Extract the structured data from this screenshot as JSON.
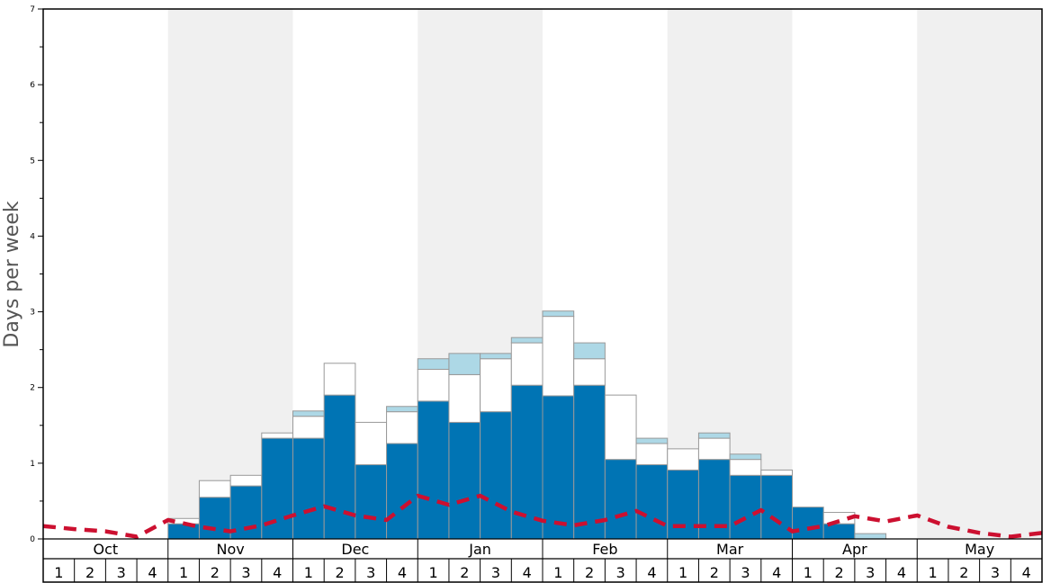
{
  "chart_data": {
    "type": "bar",
    "stacked": true,
    "ylabel": "Days per week",
    "ylim": [
      0,
      7
    ],
    "yticks": [
      "0",
      "1",
      "2",
      "3",
      "4",
      "5",
      "6",
      "7"
    ],
    "months": [
      "Oct",
      "Nov",
      "Dec",
      "Jan",
      "Feb",
      "Mar",
      "Apr",
      "May"
    ],
    "weeks": [
      "1",
      "2",
      "3",
      "4"
    ],
    "shaded_months": [
      "Nov",
      "Jan",
      "Mar",
      "May"
    ],
    "series": [
      {
        "color": "#0074b4",
        "values": [
          0,
          0,
          0,
          0,
          0.2,
          0.55,
          0.7,
          1.33,
          1.33,
          1.9,
          0.98,
          1.26,
          1.82,
          1.54,
          1.68,
          2.03,
          1.89,
          2.03,
          1.05,
          0.98,
          0.91,
          1.05,
          0.84,
          0.84,
          0.42,
          0.2,
          0,
          0,
          0,
          0,
          0,
          0
        ]
      },
      {
        "color": "#ffffff",
        "values": [
          0,
          0,
          0,
          0,
          0.07,
          0.22,
          0.14,
          0.07,
          0.29,
          0.42,
          0.56,
          0.42,
          0.42,
          0.63,
          0.7,
          0.56,
          1.05,
          0.35,
          0.85,
          0.28,
          0.28,
          0.28,
          0.21,
          0.07,
          0,
          0.15,
          0,
          0,
          0,
          0,
          0,
          0
        ]
      },
      {
        "color": "#add8e6",
        "values": [
          0,
          0,
          0,
          0,
          0,
          0,
          0,
          0,
          0.07,
          0,
          0,
          0.07,
          0.14,
          0.28,
          0.07,
          0.07,
          0.07,
          0.21,
          0,
          0.07,
          0,
          0.07,
          0.07,
          0,
          0,
          0,
          0.07,
          0,
          0,
          0,
          0,
          0
        ]
      }
    ],
    "average_line": {
      "color": "#cc1030",
      "style": "dashed",
      "values": [
        0.17,
        0.13,
        0.1,
        0.03,
        0.25,
        0.16,
        0.1,
        0.18,
        0.31,
        0.43,
        0.31,
        0.25,
        0.57,
        0.45,
        0.57,
        0.36,
        0.24,
        0.18,
        0.25,
        0.37,
        0.17,
        0.17,
        0.17,
        0.38,
        0.1,
        0.17,
        0.3,
        0.23,
        0.31,
        0.16,
        0.08,
        0.03,
        0.08
      ]
    }
  }
}
